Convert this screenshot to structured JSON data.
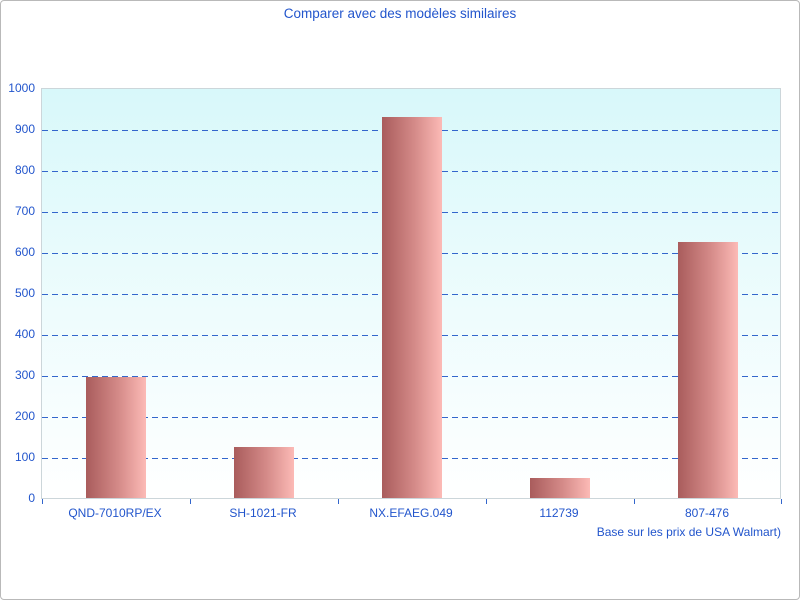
{
  "title": "Comparer avec des modèles similaires",
  "footer": "Base sur les prix de USA Walmart)",
  "colors": {
    "text_blue": "#2255cc",
    "gridline_blue": "#3366cc",
    "bar_gradient_left": "#a95c5c",
    "bar_gradient_right": "#fcbab6",
    "plot_bg_top": "#d8f8fa",
    "plot_bg_bottom": "#ffffff",
    "plot_border": "#ccd6da",
    "page_border": "#b9b9b9"
  },
  "chart_data": {
    "type": "bar",
    "title": "Comparer avec des modèles similaires",
    "categories": [
      "QND-7010RP/EX",
      "SH-1021-FR",
      "NX.EFAEG.049",
      "112739",
      "807-476"
    ],
    "values": [
      295,
      125,
      930,
      50,
      625
    ],
    "xlabel": "",
    "ylabel": "",
    "ylim": [
      0,
      1000
    ],
    "ytick_step": 100,
    "ytick_labels": [
      "0",
      "100",
      "200",
      "300",
      "400",
      "500",
      "600",
      "700",
      "800",
      "900",
      "1000"
    ],
    "grid": true,
    "grid_style": "dashed",
    "legend": false,
    "annotation": "Base sur les prix de USA Walmart)"
  }
}
